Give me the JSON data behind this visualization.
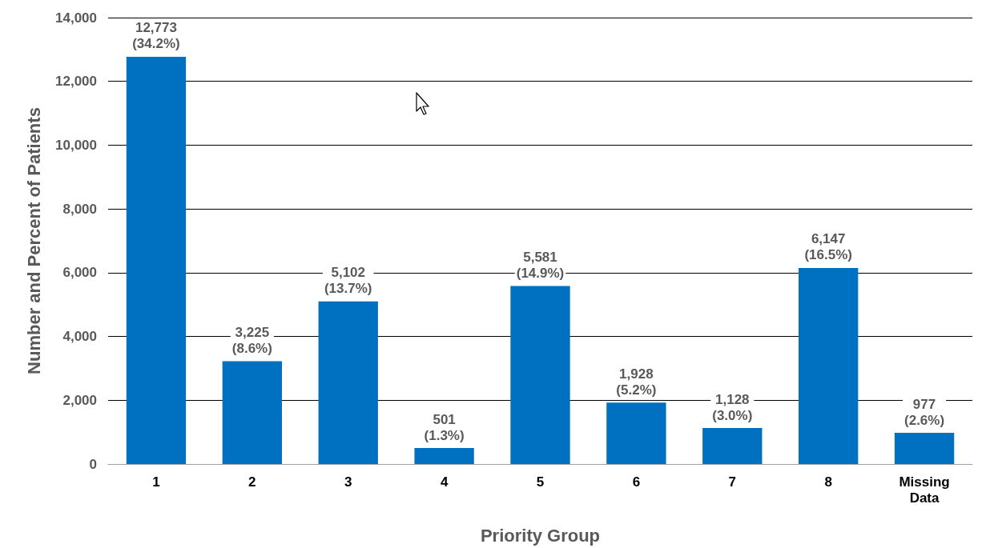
{
  "chart_data": {
    "type": "bar",
    "xlabel": "Priority Group",
    "ylabel": "Number and Percent of Patients",
    "categories": [
      "1",
      "2",
      "3",
      "4",
      "5",
      "6",
      "7",
      "8",
      "Missing\nData"
    ],
    "values": [
      12773,
      3225,
      5102,
      501,
      5581,
      1928,
      1128,
      6147,
      977
    ],
    "value_labels": [
      "12,773\n(34.2%)",
      "3,225\n(8.6%)",
      "5,102\n(13.7%)",
      "501\n(1.3%)",
      "5,581\n(14.9%)",
      "1,928\n(5.2%)",
      "1,128\n(3.0%)",
      "6,147\n(16.5%)",
      "977\n(2.6%)"
    ],
    "color": "#0070c0",
    "ylim": [
      0,
      14000
    ],
    "yticks": [
      {
        "value": 0,
        "label": "0"
      },
      {
        "value": 2000,
        "label": "2,000"
      },
      {
        "value": 4000,
        "label": "4,000"
      },
      {
        "value": 6000,
        "label": "6,000"
      },
      {
        "value": 8000,
        "label": "8,000"
      },
      {
        "value": 10000,
        "label": "10,000"
      },
      {
        "value": 12000,
        "label": "12,000"
      },
      {
        "value": 14000,
        "label": "14,000"
      }
    ],
    "grid": "y"
  }
}
